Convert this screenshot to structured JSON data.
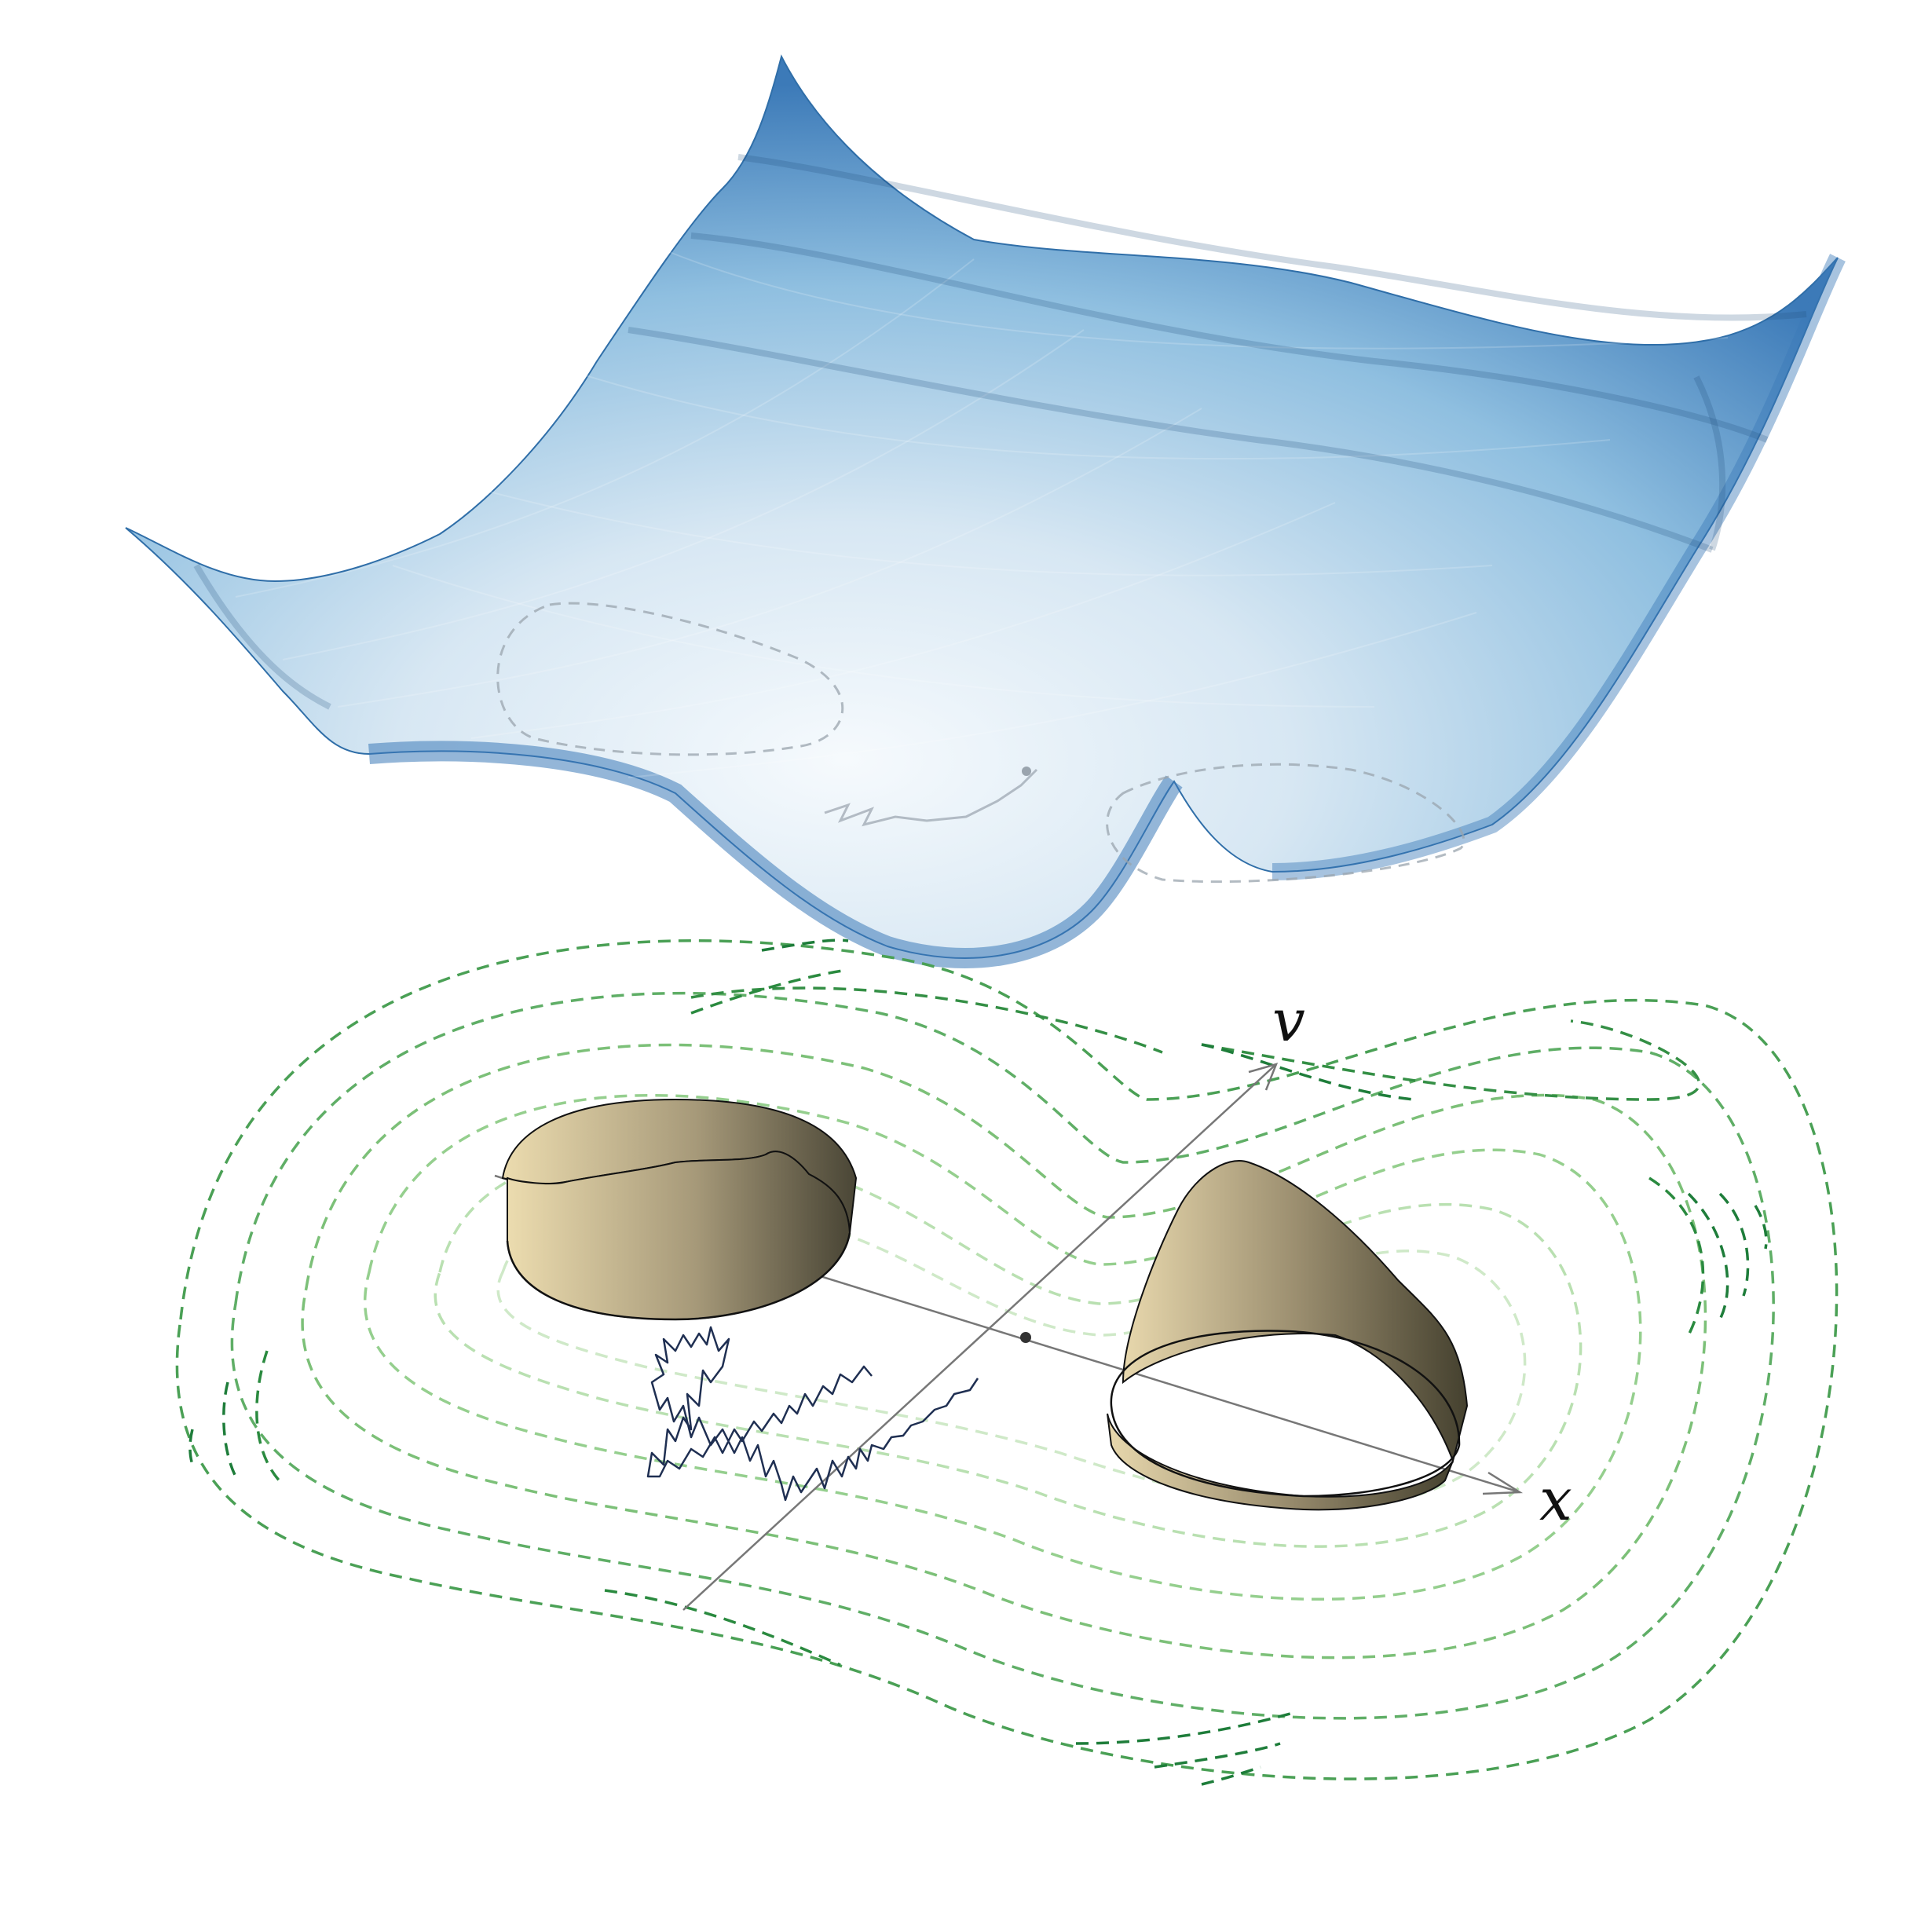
{
  "axes": {
    "x_label": "x",
    "v_label": "v"
  },
  "colors": {
    "surface_dark": "#3c7ab8",
    "surface_mid": "#8fbfe0",
    "surface_light": "#f4f9fd",
    "surface_contour": "#1f4f7a",
    "ribbon_light": "#e8d8ad",
    "ribbon_dark": "#4a4636",
    "ribbon_edge": "#111111",
    "trajectory": "#1f2f52",
    "axis": "#777777",
    "contour_dark": "#1e7d3a",
    "contour_mid": "#5fae66",
    "contour_light": "#cfe9c8"
  },
  "elements": {
    "upper": "potential-surface",
    "lower": "phase-plane-with-ribbons"
  }
}
